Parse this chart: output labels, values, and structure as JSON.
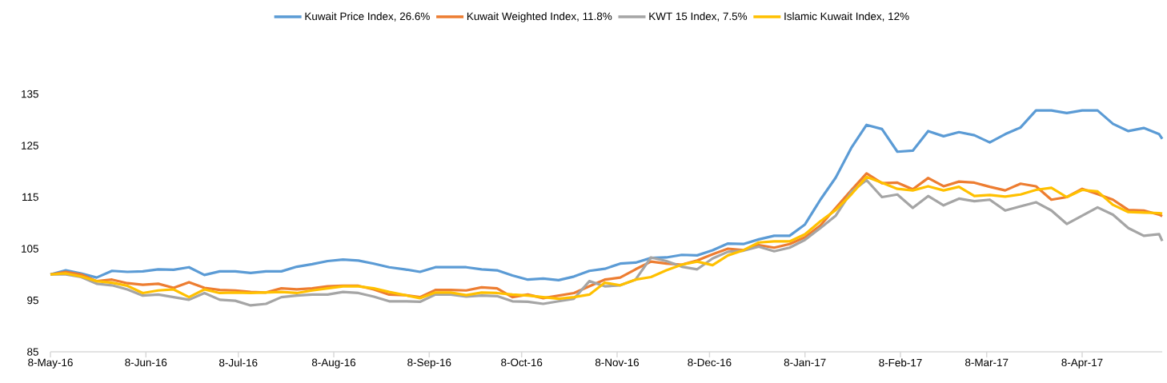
{
  "chart_data": {
    "type": "line",
    "x": [
      "2016-05-08",
      "2016-05-13",
      "2016-05-18",
      "2016-05-23",
      "2016-05-28",
      "2016-06-02",
      "2016-06-07",
      "2016-06-12",
      "2016-06-17",
      "2016-06-22",
      "2016-06-27",
      "2016-07-02",
      "2016-07-07",
      "2016-07-12",
      "2016-07-17",
      "2016-07-22",
      "2016-07-27",
      "2016-08-01",
      "2016-08-06",
      "2016-08-11",
      "2016-08-16",
      "2016-08-21",
      "2016-08-26",
      "2016-08-31",
      "2016-09-05",
      "2016-09-10",
      "2016-09-15",
      "2016-09-20",
      "2016-09-25",
      "2016-09-30",
      "2016-10-05",
      "2016-10-10",
      "2016-10-15",
      "2016-10-20",
      "2016-10-25",
      "2016-10-30",
      "2016-11-04",
      "2016-11-09",
      "2016-11-14",
      "2016-11-19",
      "2016-11-24",
      "2016-11-29",
      "2016-12-04",
      "2016-12-09",
      "2016-12-14",
      "2016-12-19",
      "2016-12-24",
      "2016-12-29",
      "2017-01-03",
      "2017-01-08",
      "2017-01-13",
      "2017-01-18",
      "2017-01-23",
      "2017-01-28",
      "2017-02-02",
      "2017-02-07",
      "2017-02-12",
      "2017-02-17",
      "2017-02-22",
      "2017-02-27",
      "2017-03-04",
      "2017-03-09",
      "2017-03-14",
      "2017-03-19",
      "2017-03-24",
      "2017-03-29",
      "2017-04-03",
      "2017-04-08",
      "2017-04-13",
      "2017-04-18",
      "2017-04-23",
      "2017-04-28",
      "2017-05-03",
      "2017-05-04"
    ],
    "series": [
      {
        "name": "Kuwait Price Index, 26.6%",
        "color": "#5b9bd5",
        "values": [
          100.0,
          100.8,
          100.2,
          99.4,
          100.7,
          100.5,
          100.6,
          101.0,
          100.9,
          101.4,
          99.9,
          100.6,
          100.6,
          100.3,
          100.6,
          100.6,
          101.5,
          102.0,
          102.6,
          102.9,
          102.7,
          102.1,
          101.4,
          101.0,
          100.5,
          101.4,
          101.4,
          101.4,
          101.0,
          100.8,
          99.8,
          99.0,
          99.2,
          98.9,
          99.6,
          100.7,
          101.1,
          102.1,
          102.3,
          103.2,
          103.3,
          103.8,
          103.7,
          104.7,
          106.0,
          105.9,
          106.8,
          107.5,
          107.5,
          109.7,
          114.5,
          118.8,
          124.5,
          129.0,
          128.2,
          123.8,
          124.0,
          127.8,
          126.8,
          127.6,
          127.0,
          125.6,
          127.2,
          128.5,
          131.8,
          131.8,
          131.3,
          131.8,
          131.8,
          129.2,
          127.8,
          128.4,
          127.2,
          126.3
        ]
      },
      {
        "name": "Kuwait Weighted Index, 11.8%",
        "color": "#ed7d31",
        "values": [
          100.0,
          100.5,
          100.0,
          98.7,
          99.0,
          98.3,
          98.0,
          98.2,
          97.4,
          98.5,
          97.4,
          97.0,
          96.9,
          96.6,
          96.5,
          97.3,
          97.1,
          97.3,
          97.7,
          97.8,
          97.8,
          97.1,
          96.1,
          96.0,
          95.6,
          97.0,
          97.0,
          96.9,
          97.5,
          97.3,
          95.6,
          96.1,
          95.4,
          95.9,
          96.4,
          97.7,
          99.0,
          99.4,
          101.0,
          102.5,
          102.1,
          101.9,
          102.7,
          103.9,
          105.0,
          104.7,
          105.7,
          105.2,
          105.9,
          107.2,
          109.5,
          112.9,
          116.3,
          119.6,
          117.7,
          117.8,
          116.5,
          118.7,
          117.1,
          118.0,
          117.8,
          117.0,
          116.3,
          117.6,
          117.1,
          114.5,
          115.0,
          116.6,
          115.6,
          114.5,
          112.5,
          112.4,
          111.6,
          111.3
        ]
      },
      {
        "name": "KWT 15 Index, 7.5%",
        "color": "#a5a5a5",
        "values": [
          100.0,
          100.0,
          99.5,
          98.2,
          97.9,
          97.1,
          95.9,
          96.1,
          95.6,
          95.1,
          96.4,
          95.1,
          94.9,
          94.0,
          94.3,
          95.6,
          95.9,
          96.1,
          96.1,
          96.6,
          96.4,
          95.7,
          94.8,
          94.8,
          94.7,
          96.1,
          96.1,
          95.7,
          95.9,
          95.8,
          94.8,
          94.7,
          94.3,
          94.8,
          95.3,
          98.7,
          97.7,
          97.9,
          99.0,
          103.3,
          102.6,
          101.5,
          101.0,
          103.1,
          104.4,
          104.6,
          105.4,
          104.5,
          105.2,
          106.7,
          109.0,
          111.4,
          116.0,
          118.3,
          115.0,
          115.5,
          112.9,
          115.2,
          113.4,
          114.7,
          114.2,
          114.5,
          112.4,
          113.2,
          114.0,
          112.4,
          109.8,
          111.4,
          113.0,
          111.6,
          109.0,
          107.5,
          107.8,
          106.5
        ]
      },
      {
        "name": "Islamic Kuwait Index, 12%",
        "color": "#ffc000",
        "values": [
          100.0,
          100.2,
          99.6,
          98.7,
          98.4,
          97.8,
          96.4,
          96.9,
          97.1,
          95.6,
          97.1,
          96.4,
          96.5,
          96.4,
          96.5,
          96.6,
          96.4,
          96.9,
          97.3,
          97.7,
          97.7,
          97.3,
          96.6,
          96.0,
          95.4,
          96.5,
          96.5,
          96.0,
          96.5,
          96.4,
          96.1,
          95.9,
          95.6,
          95.3,
          95.6,
          96.1,
          98.4,
          97.9,
          99.0,
          99.5,
          100.8,
          101.9,
          102.5,
          101.8,
          103.7,
          104.7,
          106.2,
          106.4,
          106.4,
          107.8,
          110.3,
          112.5,
          115.5,
          118.9,
          117.8,
          116.6,
          116.3,
          117.1,
          116.3,
          117.0,
          115.2,
          115.4,
          115.1,
          115.5,
          116.4,
          116.8,
          115.0,
          116.4,
          116.1,
          113.5,
          112.1,
          112.0,
          111.9,
          111.8
        ]
      }
    ],
    "xlim": [
      "2016-05-08",
      "2017-05-04"
    ],
    "xticks": [
      {
        "value": "2016-05-08",
        "label": "8-May-16"
      },
      {
        "value": "2016-06-08",
        "label": "8-Jun-16"
      },
      {
        "value": "2016-07-08",
        "label": "8-Jul-16"
      },
      {
        "value": "2016-08-08",
        "label": "8-Aug-16"
      },
      {
        "value": "2016-09-08",
        "label": "8-Sep-16"
      },
      {
        "value": "2016-10-08",
        "label": "8-Oct-16"
      },
      {
        "value": "2016-11-08",
        "label": "8-Nov-16"
      },
      {
        "value": "2016-12-08",
        "label": "8-Dec-16"
      },
      {
        "value": "2017-01-08",
        "label": "8-Jan-17"
      },
      {
        "value": "2017-02-08",
        "label": "8-Feb-17"
      },
      {
        "value": "2017-03-08",
        "label": "8-Mar-17"
      },
      {
        "value": "2017-04-08",
        "label": "8-Apr-17"
      }
    ],
    "ylim": [
      85,
      135
    ],
    "yticks": [
      85,
      95,
      105,
      115,
      125,
      135
    ],
    "legend": "top"
  }
}
